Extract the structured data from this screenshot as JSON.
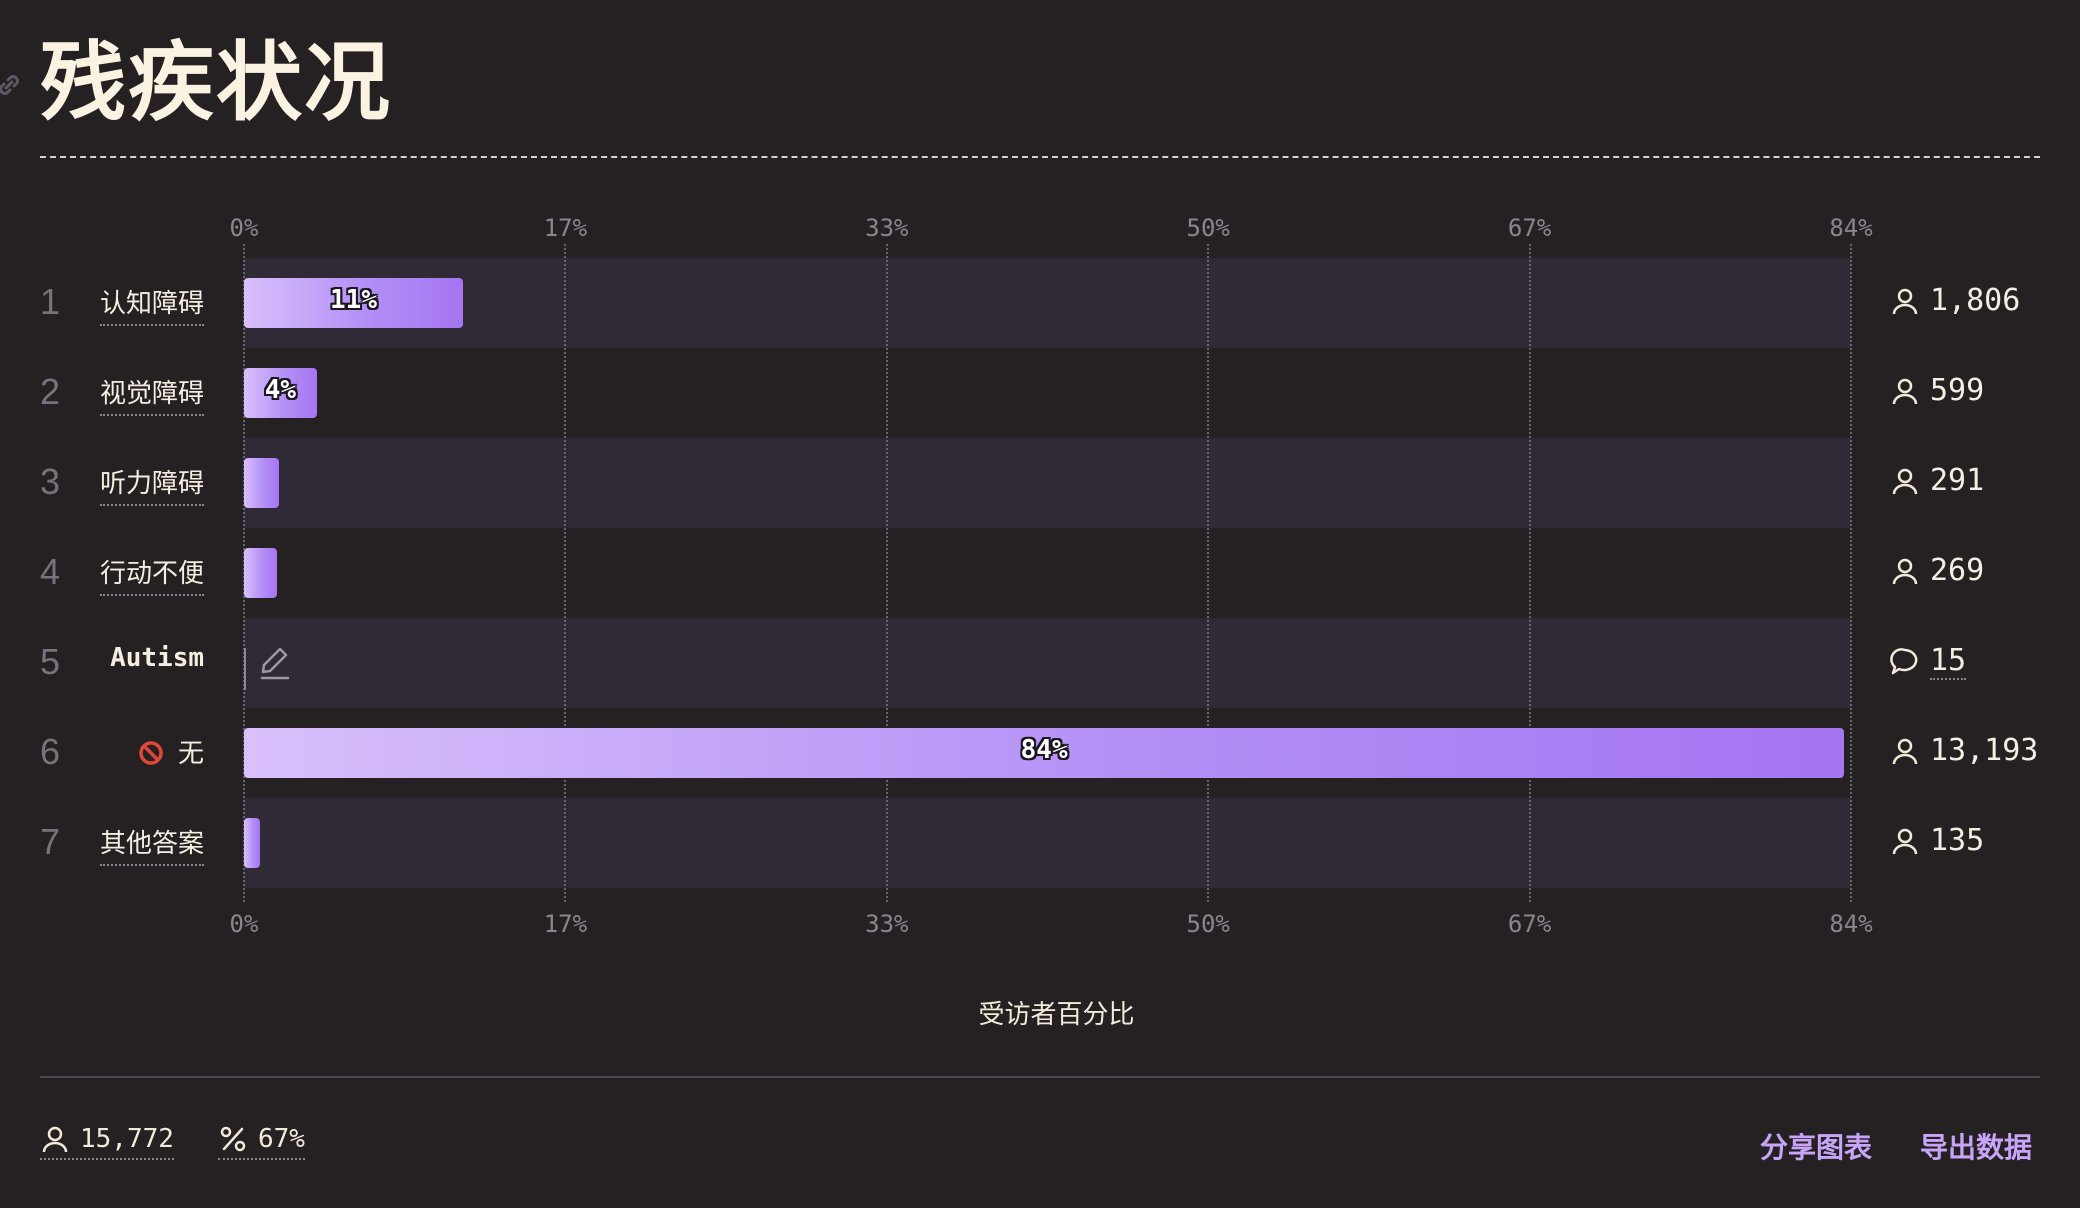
{
  "title": "残疾状况",
  "colors": {
    "background": "#252123",
    "bar_start": "#d8c0fb",
    "bar_end": "#a575f2",
    "accent_link": "#c7a4f7"
  },
  "chart_data": {
    "type": "bar",
    "orientation": "horizontal",
    "ticks": [
      "0%",
      "17%",
      "33%",
      "50%",
      "67%",
      "84%"
    ],
    "xlim": [
      0,
      84
    ],
    "xlabel": "受访者百分比",
    "grid": true,
    "rows": [
      {
        "rank": "1",
        "label": "认知障碍",
        "percent": 11.45,
        "bar_label": "11%",
        "count": "1,806",
        "icon": "user-icon"
      },
      {
        "rank": "2",
        "label": "视觉障碍",
        "percent": 3.8,
        "bar_label": "4%",
        "count": "599",
        "icon": "user-icon"
      },
      {
        "rank": "3",
        "label": "听力障碍",
        "percent": 1.85,
        "bar_label": "",
        "count": "291",
        "icon": "user-icon"
      },
      {
        "rank": "4",
        "label": "行动不便",
        "percent": 1.7,
        "bar_label": "",
        "count": "269",
        "icon": "user-icon"
      },
      {
        "rank": "5",
        "label": "Autism",
        "percent": 0,
        "bar_label": "",
        "count": "15",
        "icon": "comment-icon"
      },
      {
        "rank": "6",
        "label": "无",
        "percent": 83.65,
        "bar_label": "84%",
        "count": "13,193",
        "icon": "user-icon",
        "prefix_icon": "prohibited-icon"
      },
      {
        "rank": "7",
        "label": "其他答案",
        "percent": 0.86,
        "bar_label": "",
        "count": "135",
        "icon": "user-icon"
      }
    ]
  },
  "footer": {
    "respondents": "15,772",
    "percent": "67%",
    "share_label": "分享图表",
    "export_label": "导出数据"
  }
}
